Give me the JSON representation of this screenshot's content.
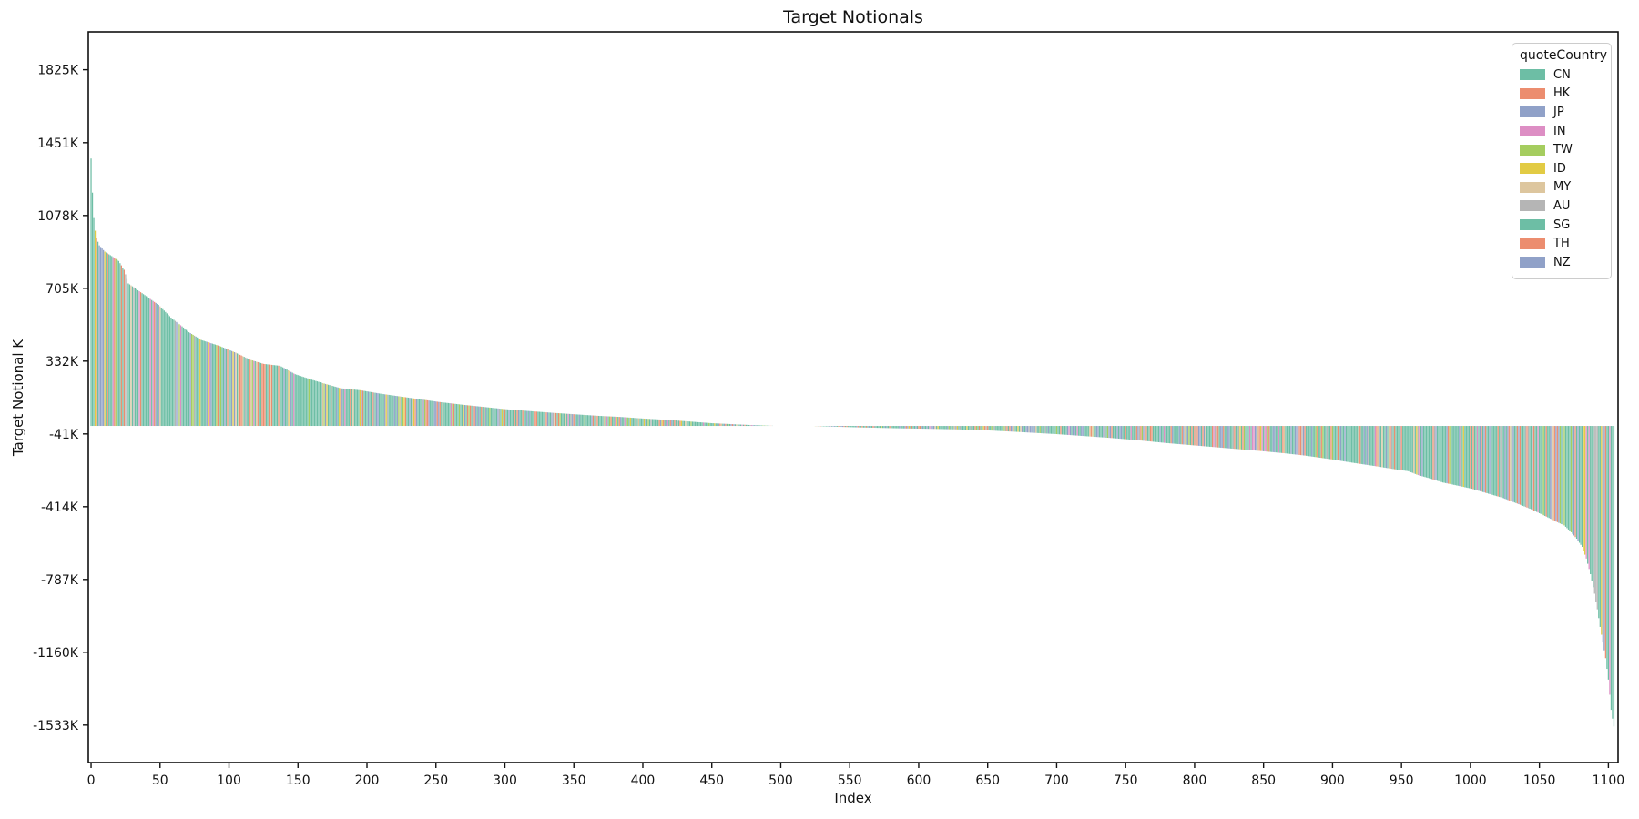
{
  "chart_data": {
    "type": "bar",
    "title": "Target Notionals",
    "xlabel": "Index",
    "ylabel": "Target Notional K",
    "grid": false,
    "n_bars": 1105,
    "bar_order": "sorted by value, descending",
    "xlim": [
      -2,
      1107
    ],
    "ylim_K": [
      -1725,
      2019
    ],
    "x_ticks": [
      {
        "v": 0,
        "label": "0"
      },
      {
        "v": 50,
        "label": "50"
      },
      {
        "v": 100,
        "label": "100"
      },
      {
        "v": 150,
        "label": "150"
      },
      {
        "v": 200,
        "label": "200"
      },
      {
        "v": 250,
        "label": "250"
      },
      {
        "v": 300,
        "label": "300"
      },
      {
        "v": 350,
        "label": "350"
      },
      {
        "v": 400,
        "label": "400"
      },
      {
        "v": 450,
        "label": "450"
      },
      {
        "v": 500,
        "label": "500"
      },
      {
        "v": 550,
        "label": "550"
      },
      {
        "v": 600,
        "label": "600"
      },
      {
        "v": 650,
        "label": "650"
      },
      {
        "v": 700,
        "label": "700"
      },
      {
        "v": 750,
        "label": "750"
      },
      {
        "v": 800,
        "label": "800"
      },
      {
        "v": 850,
        "label": "850"
      },
      {
        "v": 900,
        "label": "900"
      },
      {
        "v": 950,
        "label": "950"
      },
      {
        "v": 1000,
        "label": "1000"
      },
      {
        "v": 1050,
        "label": "1050"
      },
      {
        "v": 1100,
        "label": "1100"
      }
    ],
    "y_ticks": [
      {
        "v": 1825,
        "label": "1825K"
      },
      {
        "v": 1451,
        "label": "1451K"
      },
      {
        "v": 1078,
        "label": "1078K"
      },
      {
        "v": 705,
        "label": "705K"
      },
      {
        "v": 332,
        "label": "332K"
      },
      {
        "v": -41,
        "label": "-41K"
      },
      {
        "v": -414,
        "label": "-414K"
      },
      {
        "v": -787,
        "label": "-787K"
      },
      {
        "v": -1160,
        "label": "-1160K"
      },
      {
        "v": -1533,
        "label": "-1533K"
      }
    ],
    "legend": {
      "title": "quoteCountry",
      "position": "upper right",
      "entries": [
        {
          "label": "CN",
          "color": "#6dbea5"
        },
        {
          "label": "HK",
          "color": "#ec8d6f"
        },
        {
          "label": "JP",
          "color": "#90a1c8"
        },
        {
          "label": "IN",
          "color": "#dd8ec4"
        },
        {
          "label": "TW",
          "color": "#a5cd5f"
        },
        {
          "label": "ID",
          "color": "#e2cb44"
        },
        {
          "label": "MY",
          "color": "#ddc69e"
        },
        {
          "label": "AU",
          "color": "#b5b5b5"
        },
        {
          "label": "SG",
          "color": "#6dbea5"
        },
        {
          "label": "TH",
          "color": "#ec8d6f"
        },
        {
          "label": "NZ",
          "color": "#90a1c8"
        }
      ]
    },
    "color_weights": {
      "CN": 0.4,
      "HK": 0.07,
      "JP": 0.08,
      "IN": 0.04,
      "TW": 0.05,
      "ID": 0.03,
      "MY": 0.04,
      "AU": 0.05,
      "SG": 0.12,
      "TH": 0.06,
      "NZ": 0.06
    },
    "values_envelope_K": [
      [
        0,
        1370
      ],
      [
        1,
        1195
      ],
      [
        2,
        1065
      ],
      [
        3,
        1000
      ],
      [
        4,
        962
      ],
      [
        6,
        925
      ],
      [
        10,
        893
      ],
      [
        15,
        870
      ],
      [
        20,
        845
      ],
      [
        24,
        800
      ],
      [
        27,
        730
      ],
      [
        35,
        690
      ],
      [
        42,
        655
      ],
      [
        49,
        620
      ],
      [
        58,
        555
      ],
      [
        66,
        510
      ],
      [
        71,
        480
      ],
      [
        80,
        440
      ],
      [
        93,
        410
      ],
      [
        105,
        375
      ],
      [
        115,
        340
      ],
      [
        125,
        318
      ],
      [
        137,
        308
      ],
      [
        148,
        265
      ],
      [
        159,
        239
      ],
      [
        170,
        215
      ],
      [
        181,
        193
      ],
      [
        195,
        183
      ],
      [
        210,
        165
      ],
      [
        225,
        150
      ],
      [
        240,
        135
      ],
      [
        252,
        123
      ],
      [
        270,
        108
      ],
      [
        285,
        97
      ],
      [
        300,
        86
      ],
      [
        318,
        76
      ],
      [
        335,
        67
      ],
      [
        350,
        60
      ],
      [
        367,
        52
      ],
      [
        384,
        46
      ],
      [
        400,
        38
      ],
      [
        420,
        30
      ],
      [
        435,
        22
      ],
      [
        450,
        14
      ],
      [
        465,
        9
      ],
      [
        480,
        4
      ],
      [
        492,
        1
      ],
      [
        500,
        0
      ],
      [
        520,
        0
      ],
      [
        527,
        -1
      ],
      [
        545,
        -5
      ],
      [
        560,
        -8
      ],
      [
        585,
        -12
      ],
      [
        610,
        -15
      ],
      [
        630,
        -18
      ],
      [
        648,
        -22
      ],
      [
        670,
        -30
      ],
      [
        700,
        -42
      ],
      [
        720,
        -52
      ],
      [
        740,
        -62
      ],
      [
        760,
        -74
      ],
      [
        780,
        -88
      ],
      [
        800,
        -100
      ],
      [
        820,
        -112
      ],
      [
        847,
        -128
      ],
      [
        865,
        -140
      ],
      [
        880,
        -152
      ],
      [
        900,
        -172
      ],
      [
        913,
        -187
      ],
      [
        930,
        -205
      ],
      [
        945,
        -222
      ],
      [
        955,
        -232
      ],
      [
        962,
        -252
      ],
      [
        970,
        -268
      ],
      [
        980,
        -290
      ],
      [
        990,
        -305
      ],
      [
        1001,
        -322
      ],
      [
        1012,
        -345
      ],
      [
        1023,
        -368
      ],
      [
        1034,
        -398
      ],
      [
        1045,
        -430
      ],
      [
        1055,
        -465
      ],
      [
        1062,
        -490
      ],
      [
        1068,
        -510
      ],
      [
        1073,
        -545
      ],
      [
        1077,
        -578
      ],
      [
        1081,
        -620
      ],
      [
        1084,
        -680
      ],
      [
        1087,
        -760
      ],
      [
        1090,
        -860
      ],
      [
        1092,
        -940
      ],
      [
        1094,
        -1030
      ],
      [
        1096,
        -1110
      ],
      [
        1098,
        -1190
      ],
      [
        1100,
        -1300
      ],
      [
        1102,
        -1455
      ],
      [
        1103,
        -1500
      ],
      [
        1104,
        -1540
      ]
    ],
    "axis_color": "#111111"
  }
}
